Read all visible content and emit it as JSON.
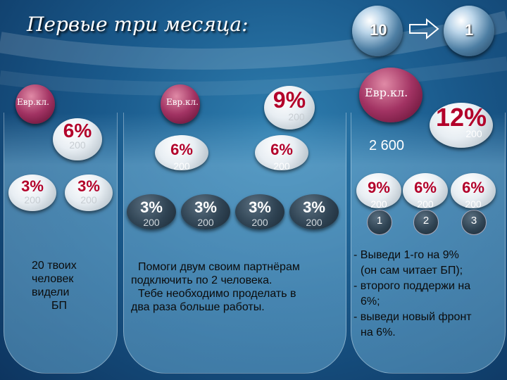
{
  "title": "Первые три месяца:",
  "nav": {
    "left_number": "10",
    "right_number": "1",
    "arrow_icon": "arrow-right-icon"
  },
  "panel1": {
    "top_label": "Евр.кл.",
    "mid": {
      "pct": "6%",
      "amt": "200"
    },
    "left": {
      "pct": "3%",
      "amt": "200"
    },
    "right": {
      "pct": "3%",
      "amt": "200"
    },
    "text": [
      "20 твоих",
      "человек",
      "видели",
      "БП"
    ]
  },
  "panel2": {
    "top_label": "Евр.кл.",
    "top": {
      "pct": "9%",
      "amt": "200"
    },
    "mid_left": {
      "pct": "6%",
      "amt": "200"
    },
    "mid_right": {
      "pct": "6%",
      "amt": "200"
    },
    "bottom": [
      {
        "pct": "3%",
        "amt": "200"
      },
      {
        "pct": "3%",
        "amt": "200"
      },
      {
        "pct": "3%",
        "amt": "200"
      },
      {
        "pct": "3%",
        "amt": "200"
      }
    ],
    "text": [
      "Помоги двум своим партнёрам",
      "подключить по 2 человека.",
      "Тебе необходимо проделать в",
      "два раза больше работы."
    ]
  },
  "panel3": {
    "top_label": "Евр.кл.",
    "top": {
      "pct": "12%",
      "amt": "200"
    },
    "total": "2 600",
    "row": [
      {
        "pct": "9%",
        "amt": "200",
        "num": "1"
      },
      {
        "pct": "6%",
        "amt": "200",
        "num": "2"
      },
      {
        "pct": "6%",
        "amt": "200",
        "num": "3"
      }
    ],
    "text": [
      "- Выведи 1-го на 9%",
      "(он сам читает БП);",
      "- второго поддержи на",
      "6%;",
      "- выведи новый фронт",
      "на 6%."
    ]
  }
}
